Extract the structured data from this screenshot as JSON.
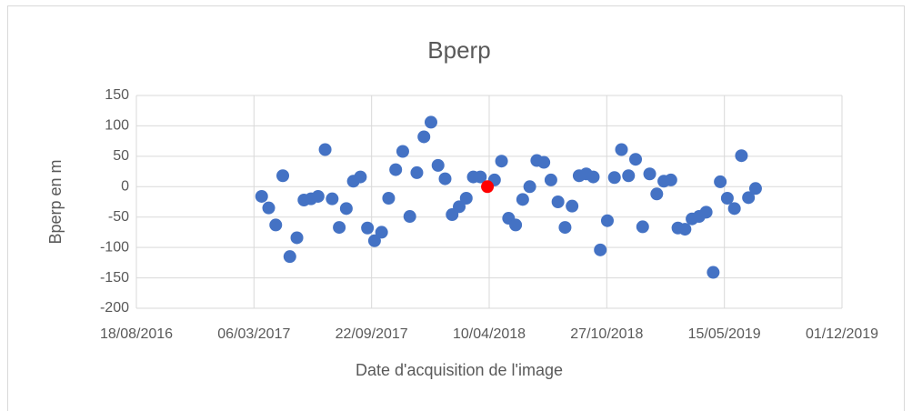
{
  "chart_data": {
    "type": "scatter",
    "title": "Bperp",
    "xlabel": "Date d'acquisition de l'image",
    "ylabel": "Bperp en m",
    "xlim": [
      "2016-08-18",
      "2019-12-01"
    ],
    "xticks": [
      {
        "value": "2016-08-18",
        "label": "18/08/2016"
      },
      {
        "value": "2017-03-06",
        "label": "06/03/2017"
      },
      {
        "value": "2017-09-22",
        "label": "22/09/2017"
      },
      {
        "value": "2018-04-10",
        "label": "10/04/2018"
      },
      {
        "value": "2018-10-27",
        "label": "27/10/2018"
      },
      {
        "value": "2019-05-15",
        "label": "15/05/2019"
      },
      {
        "value": "2019-12-01",
        "label": "01/12/2019"
      }
    ],
    "ylim": [
      -200,
      150
    ],
    "yticks": [
      -200,
      -150,
      -100,
      -50,
      0,
      50,
      100,
      150
    ],
    "grid": true,
    "series": [
      {
        "color": "#4472c4",
        "x": [
          "2017-03-19",
          "2017-03-31",
          "2017-04-12",
          "2017-04-24",
          "2017-05-06",
          "2017-05-18",
          "2017-05-30",
          "2017-06-11",
          "2017-06-23",
          "2017-07-05",
          "2017-07-17",
          "2017-07-29",
          "2017-08-10",
          "2017-08-22",
          "2017-09-03",
          "2017-09-15",
          "2017-09-27",
          "2017-10-09",
          "2017-10-21",
          "2017-11-02",
          "2017-11-14",
          "2017-11-26",
          "2017-12-08",
          "2017-12-20",
          "2018-01-01",
          "2018-01-13",
          "2018-01-25",
          "2018-02-06",
          "2018-02-18",
          "2018-03-02",
          "2018-03-14",
          "2018-03-26",
          "2018-04-19",
          "2018-05-01",
          "2018-05-13",
          "2018-05-25",
          "2018-06-06",
          "2018-06-18",
          "2018-06-30",
          "2018-07-12",
          "2018-07-24",
          "2018-08-05",
          "2018-08-17",
          "2018-08-29",
          "2018-09-10",
          "2018-09-22",
          "2018-10-04",
          "2018-10-16",
          "2018-10-28",
          "2018-11-09",
          "2018-11-21",
          "2018-12-03",
          "2018-12-15",
          "2018-12-27",
          "2019-01-08",
          "2019-01-20",
          "2019-02-01",
          "2019-02-13",
          "2019-02-25",
          "2019-03-09",
          "2019-03-21",
          "2019-04-02",
          "2019-04-14",
          "2019-04-26",
          "2019-05-08",
          "2019-05-20",
          "2019-06-01",
          "2019-06-13",
          "2019-06-25",
          "2019-07-07"
        ],
        "values": [
          -16,
          -35,
          -63,
          18,
          -115,
          -84,
          -22,
          -20,
          -16,
          61,
          -20,
          -67,
          -36,
          9,
          16,
          -68,
          -89,
          -75,
          -19,
          28,
          58,
          -49,
          23,
          82,
          106,
          35,
          13,
          -46,
          -33,
          -19,
          16,
          16,
          11,
          42,
          -52,
          -63,
          -21,
          0,
          43,
          40,
          11,
          -25,
          -67,
          -32,
          18,
          21,
          16,
          -104,
          -56,
          15,
          61,
          18,
          45,
          -66,
          21,
          -12,
          9,
          11,
          -68,
          -70,
          -53,
          -49,
          -42,
          -141,
          8,
          -19,
          -36,
          51,
          -18,
          -3
        ]
      },
      {
        "color": "#ff0000",
        "x": [
          "2018-04-07"
        ],
        "values": [
          0
        ]
      }
    ]
  }
}
